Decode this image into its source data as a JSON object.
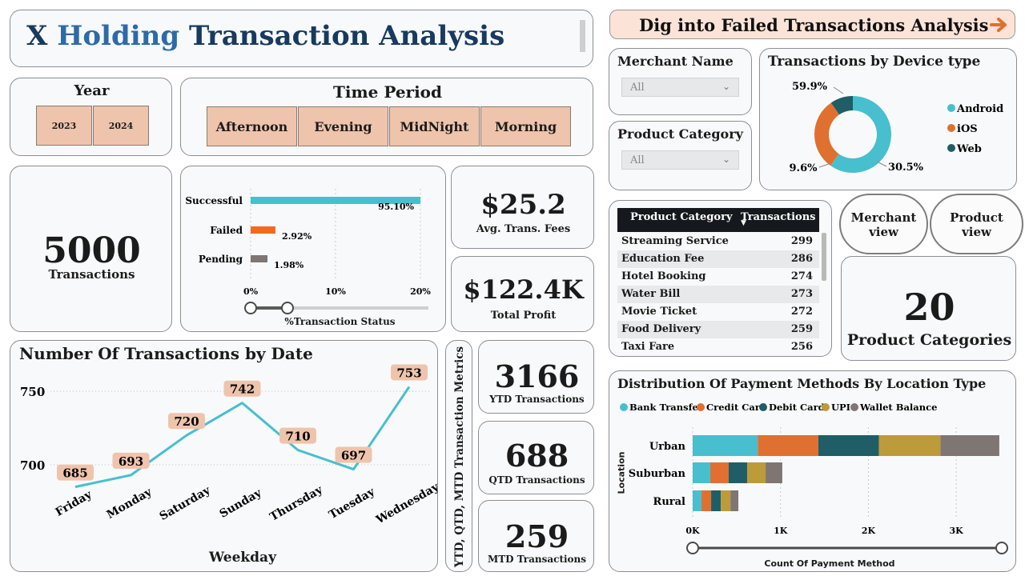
{
  "header": {
    "title_x": "X",
    "title_holding": "Holding",
    "title_rest": "Transaction Analysis"
  },
  "top_right_button": {
    "label": "Dig into Failed Transactions Analysis",
    "icon": "arrow-right-icon"
  },
  "year_filter": {
    "title": "Year",
    "options": [
      "2023",
      "2024"
    ]
  },
  "time_period_filter": {
    "title": "Time Period",
    "options": [
      "Afternoon",
      "Evening",
      "MidNight",
      "Morning"
    ]
  },
  "merchant_filter": {
    "title": "Merchant Name",
    "value": "All"
  },
  "product_category_filter": {
    "title": "Product Category",
    "value": "All"
  },
  "kpi_transactions": {
    "value": "5000",
    "label": "Transactions"
  },
  "kpi_fees": {
    "value": "$25.2",
    "label": "Avg. Trans. Fees"
  },
  "kpi_profit": {
    "value": "$122.4K",
    "label": "Total Profit"
  },
  "kpi_product_categories": {
    "value": "20",
    "label": "Product Categories"
  },
  "ytd": {
    "value": "3166",
    "label": "YTD Transactions"
  },
  "qtd": {
    "value": "688",
    "label": "QTD Transactions"
  },
  "mtd": {
    "value": "259",
    "label": "MTD Transactions"
  },
  "metrics_side_label": "YTD, QTD, MTD Transaction Metrics",
  "nav_buttons": {
    "merchant_view": "Merchant view",
    "product_view": "Product view"
  },
  "product_table": {
    "headers": [
      "Product Category",
      "Transactions"
    ],
    "rows": [
      [
        "Streaming Service",
        "299"
      ],
      [
        "Education Fee",
        "286"
      ],
      [
        "Hotel Booking",
        "274"
      ],
      [
        "Water Bill",
        "273"
      ],
      [
        "Movie Ticket",
        "272"
      ],
      [
        "Food Delivery",
        "259"
      ],
      [
        "Taxi Fare",
        "256"
      ]
    ]
  },
  "chart_data": [
    {
      "type": "bar",
      "orientation": "horizontal",
      "categories": [
        "Successful",
        "Failed",
        "Pending"
      ],
      "values": [
        95.1,
        2.92,
        1.98
      ],
      "data_labels": [
        "95.10%",
        "2.92%",
        "1.98%"
      ],
      "xlabel": "%Transaction Status",
      "xticks": [
        "0%",
        "10%",
        "20%"
      ],
      "xlim": [
        0,
        20
      ],
      "colors": [
        "#47bfcf",
        "#f26a1f",
        "#7f7573"
      ]
    },
    {
      "type": "line",
      "title": "Number Of Transactions by Date",
      "categories": [
        "Friday",
        "Monday",
        "Saturday",
        "Sunday",
        "Thursday",
        "Tuesday",
        "Wednesday"
      ],
      "values": [
        685,
        693,
        720,
        742,
        710,
        697,
        753
      ],
      "xlabel": "Weekday",
      "yticks": [
        "700",
        "750"
      ],
      "ylim": [
        680,
        760
      ],
      "color": "#47bfcf"
    },
    {
      "type": "pie",
      "title": "Transactions by Device type",
      "labels": [
        "Android",
        "iOS",
        "Web"
      ],
      "values": [
        59.9,
        30.5,
        9.6
      ],
      "data_labels": [
        "59.9%",
        "30.5%",
        "9.6%"
      ],
      "colors": [
        "#47bfcf",
        "#e0702f",
        "#1f5e66"
      ],
      "legend": "right"
    },
    {
      "type": "bar",
      "orientation": "horizontal",
      "stacked": true,
      "title": "Distribution Of Payment Methods By Location Type",
      "categories": [
        "Urban",
        "Suburban",
        "Rural"
      ],
      "series": [
        {
          "name": "Bank Transfer",
          "values": [
            740,
            200,
            100
          ]
        },
        {
          "name": "Credit Card",
          "values": [
            690,
            210,
            110
          ]
        },
        {
          "name": "Debit Card",
          "values": [
            690,
            210,
            110
          ]
        },
        {
          "name": "UPI",
          "values": [
            700,
            210,
            110
          ]
        },
        {
          "name": "Wallet Balance",
          "values": [
            670,
            190,
            90
          ]
        }
      ],
      "colors": [
        "#47bfcf",
        "#e0702f",
        "#1f5e66",
        "#bd9a3a",
        "#7f7573"
      ],
      "xlabel": "Count Of Payment Method",
      "ylabel": "Location",
      "xticks": [
        "0K",
        "1K",
        "2K",
        "3K"
      ],
      "xlim": [
        0,
        3500
      ],
      "legend": "top"
    }
  ]
}
